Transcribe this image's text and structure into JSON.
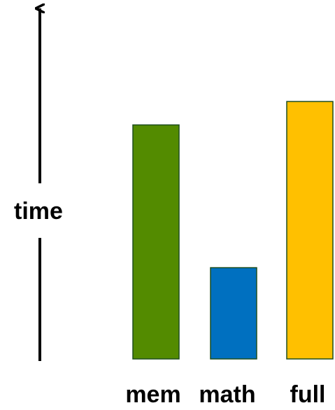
{
  "chart_data": {
    "type": "bar",
    "ylabel": "time",
    "categories": [
      "mem",
      "math",
      "full"
    ],
    "values": [
      1.0,
      0.39,
      1.1
    ],
    "ylim": [
      0,
      1.45
    ],
    "grid": false,
    "legend": false,
    "colors": [
      "#538b00",
      "#0070c0",
      "#ffc000"
    ],
    "bar_edge_color": "#1f4e1f",
    "axis_color": "#000000"
  }
}
